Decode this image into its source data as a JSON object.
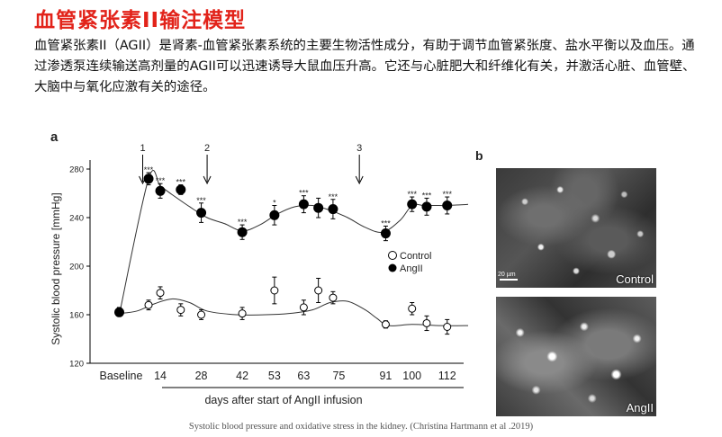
{
  "page": {
    "title": "血管紧张素II输注模型",
    "intro": "血管紧张素II（AGII）是肾素-血管紧张素系统的主要生物活性成分，有助于调节血管紧张度、盐水平衡以及血压。通过渗透泵连续输送高剂量的AGII可以迅速诱导大鼠血压升高。它还与心脏肥大和纤维化有关，并激活心脏、血管壁、大脑中与氧化应激有关的途径。",
    "caption": "Systolic blood pressure and oxidative stress in the kidney. (Christina Hartmann et al .2019)"
  },
  "chart_data": {
    "type": "line",
    "panel_label": "a",
    "xlabel": "days after start of AngII infusion",
    "ylabel": "Systolic blood pressure [mmHg]",
    "ylim": [
      120,
      290
    ],
    "yticks": [
      120,
      160,
      200,
      240,
      280
    ],
    "x_ticks": [
      "Baseline",
      "14",
      "28",
      "42",
      "53",
      "63",
      "75",
      "91",
      "100",
      "112"
    ],
    "legend": {
      "position": "right",
      "entries": [
        "Control",
        "AngII"
      ]
    },
    "arrows": [
      {
        "label": "1",
        "x": 8
      },
      {
        "label": "2",
        "x": 30
      },
      {
        "label": "3",
        "x": 82
      }
    ],
    "series": [
      {
        "name": "Control",
        "marker": "open-circle",
        "x": [
          0,
          10,
          14,
          21,
          28,
          42,
          53,
          63,
          68,
          73,
          91,
          100,
          105,
          112
        ],
        "y": [
          163,
          168,
          178,
          164,
          160,
          161,
          180,
          166,
          180,
          174,
          152,
          165,
          153,
          150
        ],
        "err": [
          3,
          4,
          5,
          5,
          4,
          5,
          11,
          6,
          10,
          5,
          3,
          5,
          6,
          6
        ],
        "curve_x": [
          0,
          6,
          12,
          18,
          24,
          30,
          40,
          50,
          58,
          66,
          72,
          78,
          84,
          88,
          92,
          100,
          110,
          120
        ],
        "curve_y": [
          161,
          163,
          169,
          173,
          170,
          163,
          160,
          160,
          161,
          164,
          170,
          171,
          164,
          157,
          151,
          152,
          151,
          151
        ]
      },
      {
        "name": "AngII",
        "marker": "filled-circle",
        "x": [
          0,
          10,
          14,
          21,
          28,
          42,
          53,
          63,
          68,
          73,
          91,
          100,
          105,
          112
        ],
        "y": [
          162,
          272,
          262,
          263,
          244,
          228,
          242,
          251,
          248,
          247,
          227,
          251,
          249,
          250
        ],
        "err": [
          3,
          5,
          6,
          4,
          8,
          6,
          8,
          7,
          8,
          8,
          6,
          6,
          7,
          7
        ],
        "curve_x": [
          0,
          10,
          14,
          18,
          24,
          30,
          36,
          42,
          48,
          54,
          60,
          66,
          72,
          78,
          84,
          90,
          96,
          100,
          104,
          108,
          112,
          120
        ],
        "curve_y": [
          160,
          272,
          266,
          259,
          249,
          240,
          235,
          229,
          234,
          243,
          249,
          250,
          246,
          240,
          232,
          228,
          238,
          250,
          250,
          250,
          250,
          251
        ]
      }
    ],
    "significance": [
      {
        "x": 10,
        "y": 277,
        "label": "***"
      },
      {
        "x": 14,
        "y": 268,
        "label": "***"
      },
      {
        "x": 21,
        "y": 267,
        "label": "***"
      },
      {
        "x": 28,
        "y": 252,
        "label": "***"
      },
      {
        "x": 42,
        "y": 234,
        "label": "***"
      },
      {
        "x": 53,
        "y": 250,
        "label": "*"
      },
      {
        "x": 63,
        "y": 258,
        "label": "***"
      },
      {
        "x": 73,
        "y": 255,
        "label": "***"
      },
      {
        "x": 91,
        "y": 233,
        "label": "***"
      },
      {
        "x": 100,
        "y": 257,
        "label": "***"
      },
      {
        "x": 105,
        "y": 256,
        "label": "***"
      },
      {
        "x": 112,
        "y": 257,
        "label": "***"
      }
    ]
  },
  "panel_b": {
    "label": "b",
    "images": [
      {
        "label": "Control",
        "scale_label": "20 µm"
      },
      {
        "label": "AngII"
      }
    ]
  }
}
